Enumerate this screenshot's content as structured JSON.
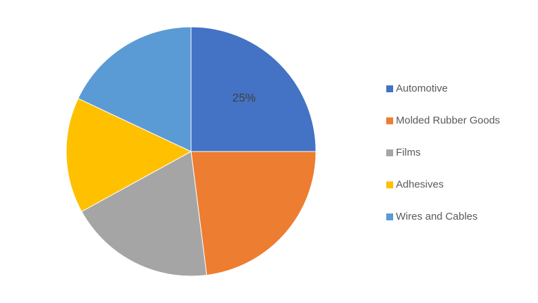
{
  "chart_data": {
    "type": "pie",
    "categories": [
      "Automotive",
      "Molded Rubber Goods",
      "Films",
      "Adhesives",
      "Wires and Cables"
    ],
    "values": [
      25,
      23,
      19,
      15,
      18
    ],
    "value_labels": [
      "25%",
      null,
      null,
      null,
      null
    ],
    "colors": [
      "#4472c4",
      "#ed7d31",
      "#a5a5a5",
      "#ffc000",
      "#5b9bd5"
    ],
    "legend": "right"
  }
}
